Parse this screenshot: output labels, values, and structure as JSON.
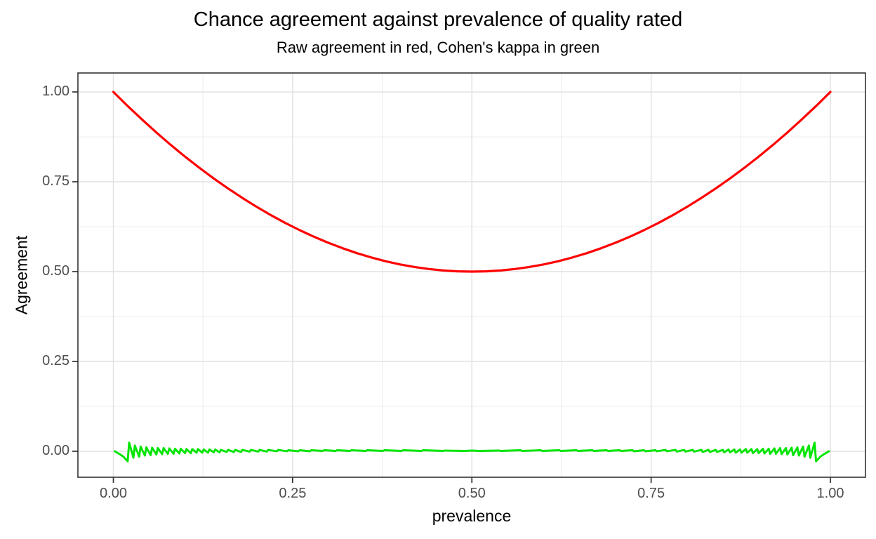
{
  "chart_data": {
    "type": "line",
    "title": "Chance agreement against prevalence of quality rated",
    "subtitle": "Raw agreement in red, Cohen's kappa in green",
    "xlabel": "prevalence",
    "ylabel": "Agreement",
    "legend": "none",
    "grid": "on",
    "style": {
      "background": "#ffffff",
      "panel_border": "#333333",
      "tick_color": "#333333",
      "tick_label_color": "#4d4d4d",
      "grid_major": "#e2e2e2",
      "grid_minor": "#ececec"
    },
    "axes": {
      "x": {
        "ticks": [
          0.0,
          0.25,
          0.5,
          0.75,
          1.0
        ],
        "tick_labels": [
          "0.00",
          "0.25",
          "0.50",
          "0.75",
          "1.00"
        ],
        "minor": [
          0.125,
          0.375,
          0.625,
          0.875
        ],
        "lim": [
          -0.0495,
          1.0495
        ]
      },
      "y": {
        "ticks": [
          0.0,
          0.25,
          0.5,
          0.75,
          1.0
        ],
        "tick_labels": [
          "0.00",
          "0.25",
          "0.50",
          "0.75",
          "1.00"
        ],
        "minor": [
          0.125,
          0.375,
          0.625,
          0.875
        ],
        "lim": [
          -0.0723,
          1.0527
        ]
      }
    },
    "series": [
      {
        "name": "Raw agreement",
        "color": "#ff0000",
        "width": 3.2,
        "points": [
          [
            0.0,
            1.0
          ],
          [
            0.02,
            0.9608
          ],
          [
            0.04,
            0.9232
          ],
          [
            0.06,
            0.8872
          ],
          [
            0.08,
            0.8528
          ],
          [
            0.1,
            0.82
          ],
          [
            0.12,
            0.7888
          ],
          [
            0.14,
            0.7592
          ],
          [
            0.16,
            0.7312
          ],
          [
            0.18,
            0.7048
          ],
          [
            0.2,
            0.68
          ],
          [
            0.22,
            0.6568
          ],
          [
            0.24,
            0.6352
          ],
          [
            0.26,
            0.6152
          ],
          [
            0.28,
            0.5968
          ],
          [
            0.3,
            0.58
          ],
          [
            0.32,
            0.5648
          ],
          [
            0.34,
            0.5512
          ],
          [
            0.36,
            0.5392
          ],
          [
            0.38,
            0.5288
          ],
          [
            0.4,
            0.52
          ],
          [
            0.42,
            0.5128
          ],
          [
            0.44,
            0.5072
          ],
          [
            0.46,
            0.5032
          ],
          [
            0.48,
            0.5008
          ],
          [
            0.5,
            0.5
          ],
          [
            0.52,
            0.5008
          ],
          [
            0.54,
            0.5032
          ],
          [
            0.56,
            0.5072
          ],
          [
            0.58,
            0.5128
          ],
          [
            0.6,
            0.52
          ],
          [
            0.62,
            0.5288
          ],
          [
            0.64,
            0.5392
          ],
          [
            0.66,
            0.5512
          ],
          [
            0.68,
            0.5648
          ],
          [
            0.7,
            0.58
          ],
          [
            0.72,
            0.5968
          ],
          [
            0.74,
            0.6152
          ],
          [
            0.76,
            0.6352
          ],
          [
            0.78,
            0.6568
          ],
          [
            0.8,
            0.68
          ],
          [
            0.82,
            0.7048
          ],
          [
            0.84,
            0.7312
          ],
          [
            0.86,
            0.7592
          ],
          [
            0.88,
            0.7888
          ],
          [
            0.9,
            0.82
          ],
          [
            0.92,
            0.8528
          ],
          [
            0.94,
            0.8872
          ],
          [
            0.96,
            0.9232
          ],
          [
            0.98,
            0.9608
          ],
          [
            1.0,
            1.0
          ]
        ]
      },
      {
        "name": "Cohen's kappa",
        "color": "#00e400",
        "width": 2.9,
        "points": [
          [
            0.002,
            0.0
          ],
          [
            0.008,
            -0.007
          ],
          [
            0.014,
            -0.015
          ],
          [
            0.02,
            -0.028
          ],
          [
            0.022,
            0.024
          ],
          [
            0.028,
            -0.018
          ],
          [
            0.03,
            0.016
          ],
          [
            0.036,
            -0.015
          ],
          [
            0.038,
            0.013
          ],
          [
            0.044,
            -0.012
          ],
          [
            0.046,
            0.011
          ],
          [
            0.052,
            -0.011
          ],
          [
            0.054,
            0.01
          ],
          [
            0.06,
            -0.009
          ],
          [
            0.062,
            0.009
          ],
          [
            0.068,
            -0.008
          ],
          [
            0.07,
            0.009
          ],
          [
            0.076,
            -0.007
          ],
          [
            0.078,
            0.008
          ],
          [
            0.084,
            -0.007
          ],
          [
            0.086,
            0.007
          ],
          [
            0.092,
            -0.006
          ],
          [
            0.094,
            0.007
          ],
          [
            0.1,
            -0.005
          ],
          [
            0.102,
            0.006
          ],
          [
            0.108,
            -0.005
          ],
          [
            0.11,
            0.006
          ],
          [
            0.116,
            -0.004
          ],
          [
            0.118,
            0.006
          ],
          [
            0.124,
            -0.004
          ],
          [
            0.126,
            0.005
          ],
          [
            0.132,
            -0.004
          ],
          [
            0.134,
            0.005
          ],
          [
            0.14,
            -0.003
          ],
          [
            0.142,
            0.005
          ],
          [
            0.148,
            -0.003
          ],
          [
            0.15,
            0.004
          ],
          [
            0.158,
            -0.002
          ],
          [
            0.16,
            0.004
          ],
          [
            0.168,
            -0.002
          ],
          [
            0.17,
            0.004
          ],
          [
            0.178,
            -0.002
          ],
          [
            0.18,
            0.004
          ],
          [
            0.19,
            -0.001
          ],
          [
            0.192,
            0.004
          ],
          [
            0.202,
            -0.001
          ],
          [
            0.204,
            0.004
          ],
          [
            0.214,
            -0.001
          ],
          [
            0.216,
            0.004
          ],
          [
            0.228,
            0.0
          ],
          [
            0.23,
            0.004
          ],
          [
            0.242,
            0.0
          ],
          [
            0.244,
            0.003
          ],
          [
            0.258,
            0.0
          ],
          [
            0.26,
            0.003
          ],
          [
            0.274,
            0.0
          ],
          [
            0.276,
            0.003
          ],
          [
            0.292,
            0.001
          ],
          [
            0.294,
            0.003
          ],
          [
            0.31,
            0.001
          ],
          [
            0.312,
            0.003
          ],
          [
            0.33,
            0.001
          ],
          [
            0.332,
            0.003
          ],
          [
            0.352,
            0.001
          ],
          [
            0.354,
            0.003
          ],
          [
            0.376,
            0.001
          ],
          [
            0.378,
            0.003
          ],
          [
            0.402,
            0.001
          ],
          [
            0.404,
            0.003
          ],
          [
            0.43,
            0.001
          ],
          [
            0.432,
            0.003
          ],
          [
            0.46,
            0.001
          ],
          [
            0.462,
            0.002
          ],
          [
            0.49,
            0.001
          ],
          [
            0.5,
            0.002
          ],
          [
            0.51,
            0.001
          ],
          [
            0.538,
            0.002
          ],
          [
            0.54,
            0.001
          ],
          [
            0.568,
            0.003
          ],
          [
            0.57,
            0.001
          ],
          [
            0.596,
            0.003
          ],
          [
            0.598,
            0.001
          ],
          [
            0.622,
            0.003
          ],
          [
            0.624,
            0.001
          ],
          [
            0.646,
            0.003
          ],
          [
            0.648,
            0.001
          ],
          [
            0.668,
            0.003
          ],
          [
            0.67,
            0.001
          ],
          [
            0.688,
            0.003
          ],
          [
            0.69,
            0.001
          ],
          [
            0.706,
            0.003
          ],
          [
            0.708,
            0.001
          ],
          [
            0.724,
            0.003
          ],
          [
            0.726,
            0.0
          ],
          [
            0.74,
            0.003
          ],
          [
            0.742,
            0.0
          ],
          [
            0.756,
            0.003
          ],
          [
            0.758,
            0.0
          ],
          [
            0.77,
            0.004
          ],
          [
            0.772,
            0.0
          ],
          [
            0.784,
            0.004
          ],
          [
            0.786,
            -0.001
          ],
          [
            0.796,
            0.004
          ],
          [
            0.798,
            -0.001
          ],
          [
            0.808,
            0.004
          ],
          [
            0.81,
            -0.001
          ],
          [
            0.82,
            0.004
          ],
          [
            0.822,
            -0.002
          ],
          [
            0.83,
            0.004
          ],
          [
            0.832,
            -0.002
          ],
          [
            0.84,
            0.004
          ],
          [
            0.842,
            -0.002
          ],
          [
            0.85,
            0.004
          ],
          [
            0.852,
            -0.003
          ],
          [
            0.858,
            0.005
          ],
          [
            0.86,
            -0.003
          ],
          [
            0.866,
            0.005
          ],
          [
            0.868,
            -0.004
          ],
          [
            0.874,
            0.005
          ],
          [
            0.876,
            -0.004
          ],
          [
            0.882,
            0.006
          ],
          [
            0.884,
            -0.004
          ],
          [
            0.89,
            0.006
          ],
          [
            0.892,
            -0.005
          ],
          [
            0.898,
            0.006
          ],
          [
            0.9,
            -0.005
          ],
          [
            0.906,
            0.007
          ],
          [
            0.908,
            -0.006
          ],
          [
            0.914,
            0.007
          ],
          [
            0.916,
            -0.007
          ],
          [
            0.922,
            0.008
          ],
          [
            0.924,
            -0.007
          ],
          [
            0.93,
            0.009
          ],
          [
            0.932,
            -0.008
          ],
          [
            0.938,
            0.009
          ],
          [
            0.94,
            -0.009
          ],
          [
            0.946,
            0.01
          ],
          [
            0.948,
            -0.011
          ],
          [
            0.954,
            0.011
          ],
          [
            0.956,
            -0.012
          ],
          [
            0.962,
            0.013
          ],
          [
            0.964,
            -0.015
          ],
          [
            0.97,
            0.016
          ],
          [
            0.972,
            -0.018
          ],
          [
            0.978,
            0.024
          ],
          [
            0.98,
            -0.028
          ],
          [
            0.986,
            -0.015
          ],
          [
            0.992,
            -0.007
          ],
          [
            0.998,
            0.0
          ]
        ]
      }
    ]
  }
}
